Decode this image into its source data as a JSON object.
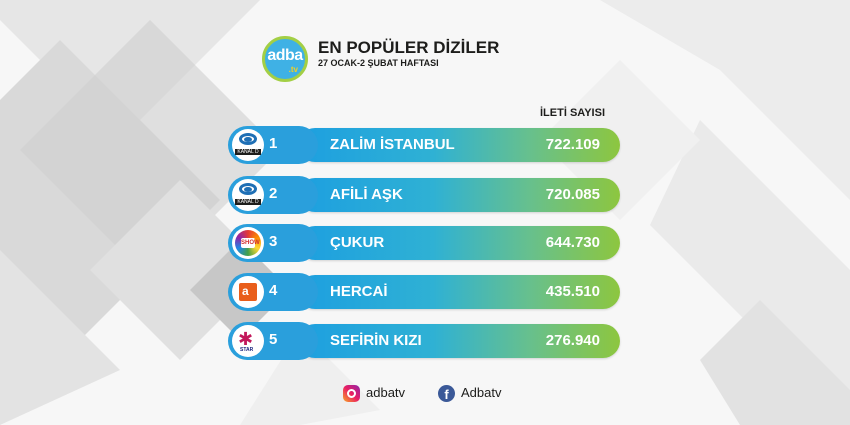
{
  "header": {
    "logo_text": "adba",
    "logo_suffix": ".tv",
    "title": "EN POPÜLER DİZİLER",
    "subtitle": "27 OCAK-2 ŞUBAT HAFTASI",
    "column_header": "İLETİ SAYISI"
  },
  "chart_data": {
    "type": "bar",
    "title": "EN POPÜLER DİZİLER",
    "subtitle": "27 OCAK-2 ŞUBAT HAFTASI",
    "value_label": "İLETİ SAYISI",
    "rows": [
      {
        "rank": "1",
        "channel": "kanal-d",
        "channel_text": "KANAL D",
        "name": "ZALİM İSTANBUL",
        "value_text": "722.109",
        "value": 722109
      },
      {
        "rank": "2",
        "channel": "kanal-d",
        "channel_text": "KANAL D",
        "name": "AFİLİ AŞK",
        "value_text": "720.085",
        "value": 720085
      },
      {
        "rank": "3",
        "channel": "show-tv",
        "channel_text": "SHOW",
        "name": "ÇUKUR",
        "value_text": "644.730",
        "value": 644730
      },
      {
        "rank": "4",
        "channel": "atv",
        "channel_text": "a",
        "name": "HERCAİ",
        "value_text": "435.510",
        "value": 435510
      },
      {
        "rank": "5",
        "channel": "star-tv",
        "channel_text": "STAR",
        "name": "SEFİRİN KIZI",
        "value_text": "276.940",
        "value": 276940
      }
    ]
  },
  "footer": {
    "instagram_handle": "adbatv",
    "facebook_handle": "Adbatv",
    "instagram_icon": "instagram-icon",
    "facebook_icon": "facebook-icon"
  },
  "colors": {
    "badge": "#2a9fdc",
    "gradient_start": "#1d9fe0",
    "gradient_end": "#8dc63f",
    "logo_blue": "#3fb1e5",
    "logo_green": "#a3cf45"
  }
}
